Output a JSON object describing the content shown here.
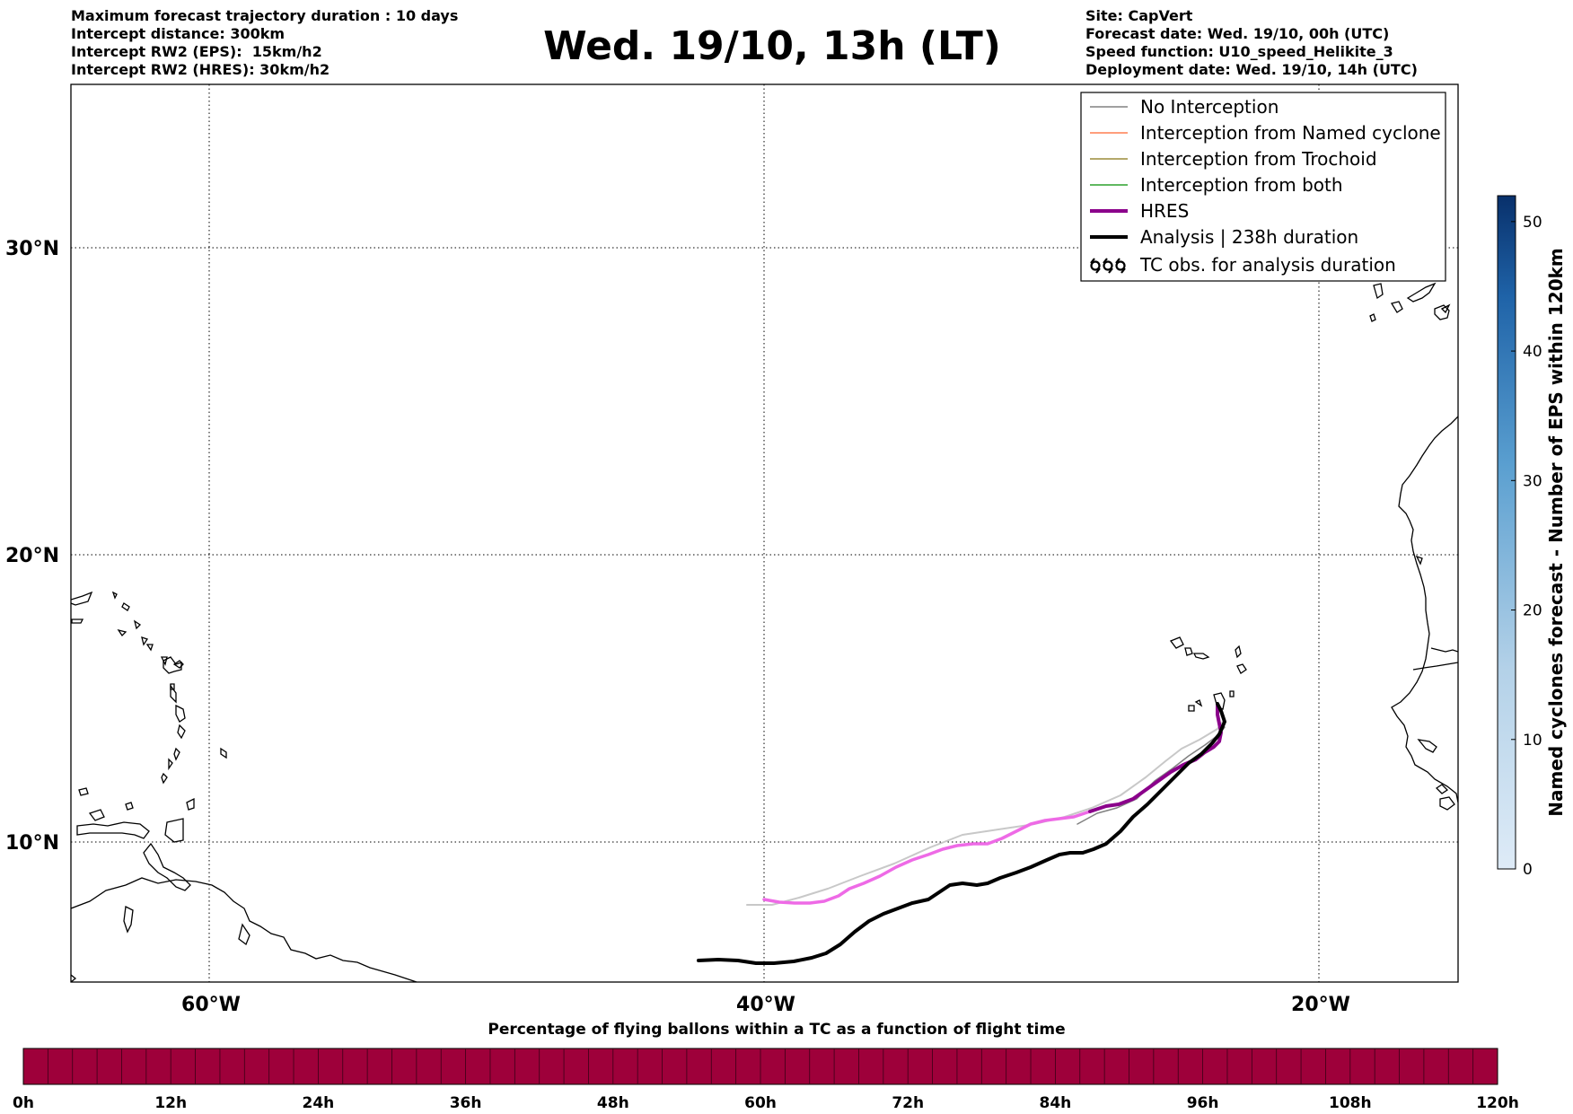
{
  "header": {
    "left_lines": [
      "Maximum forecast trajectory duration : 10 days",
      "Intercept distance: 300km",
      "Intercept RW2 (EPS):  15km/h2",
      "Intercept RW2 (HRES): 30km/h2"
    ],
    "right_lines": [
      "Site: CapVert",
      "Forecast date: Wed. 19/10, 00h (UTC)",
      "Speed function: U10_speed_Helikite_3",
      "Deployment date: Wed. 19/10, 14h (UTC)"
    ],
    "title": "Wed. 19/10, 13h (LT)"
  },
  "map": {
    "lat_labels": [
      "30°N",
      "20°N",
      "10°N"
    ],
    "lon_labels": [
      "60°W",
      "40°W",
      "20°W"
    ],
    "grid": "dotted",
    "legend": {
      "placement": "top-right",
      "entries": [
        {
          "label": "No Interception",
          "color": "#808080",
          "style": "thin"
        },
        {
          "label": "Interception from Named cyclone",
          "color": "#ff7f50",
          "style": "thin"
        },
        {
          "label": "Interception from Trochoid",
          "color": "#9b8b3a",
          "style": "thin"
        },
        {
          "label": "Interception from both",
          "color": "#2ca02c",
          "style": "thin"
        },
        {
          "label": "HRES",
          "color": "#8b008b",
          "style": "thick"
        },
        {
          "label": "Analysis | 238h duration",
          "color": "#000000",
          "style": "thick"
        },
        {
          "label": "TC obs. for analysis duration",
          "color": "#000000",
          "style": "cyclone-symbols"
        }
      ]
    }
  },
  "colorbar_right": {
    "label": "Named cyclones forecast - Number of EPS within 120km",
    "ticks": [
      "0",
      "10",
      "20",
      "30",
      "40",
      "50"
    ],
    "min": 0,
    "max": 52,
    "color_low": "#deebf7",
    "color_high": "#08306b"
  },
  "colorbar_bottom": {
    "title": "Percentage of flying ballons within a TC as a function of flight time",
    "ticks": [
      "0h",
      "12h",
      "24h",
      "36h",
      "48h",
      "60h",
      "72h",
      "84h",
      "96h",
      "108h",
      "120h"
    ],
    "color": "#9e003a"
  }
}
